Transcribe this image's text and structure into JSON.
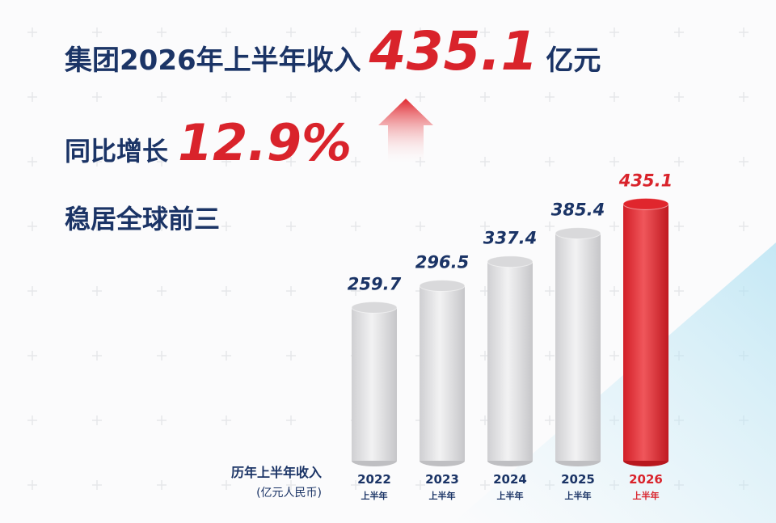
{
  "chart_data": {
    "type": "bar",
    "headline": {
      "prefix": "集团2026年上半年收入",
      "amount": "435.1",
      "unit": "亿元"
    },
    "growth": {
      "label": "同比增长",
      "amount": "12.9%"
    },
    "ranking": "稳居全球前三",
    "y_label": "历年上半年收入",
    "y_unit": "(亿元人民币)",
    "categories": [
      "2022",
      "2023",
      "2024",
      "2025",
      "2026"
    ],
    "category_sublabel": "上半年",
    "values": [
      259.7,
      296.5,
      337.4,
      385.4,
      435.1
    ],
    "colors": [
      "#d9d9db",
      "#d9d9db",
      "#d9d9db",
      "#d9d9db",
      "#e0262d"
    ],
    "label_colors": [
      "#1b3466",
      "#1b3466",
      "#1b3466",
      "#1b3466",
      "#d9232b"
    ]
  }
}
